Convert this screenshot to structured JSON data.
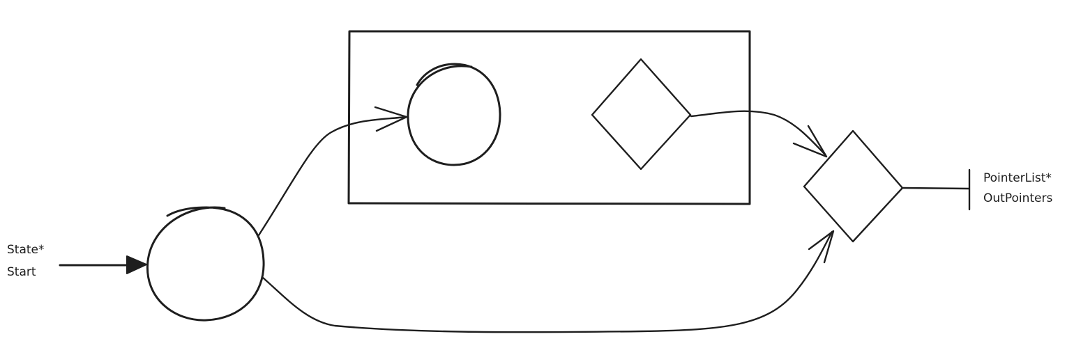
{
  "diagram": {
    "stroke_color": "#1e1e1e",
    "background_color": "#ffffff",
    "start_label": {
      "line1": "State*",
      "line2": "Start"
    },
    "output_label": {
      "line1": "PointerList*",
      "line2": "OutPointers"
    }
  }
}
